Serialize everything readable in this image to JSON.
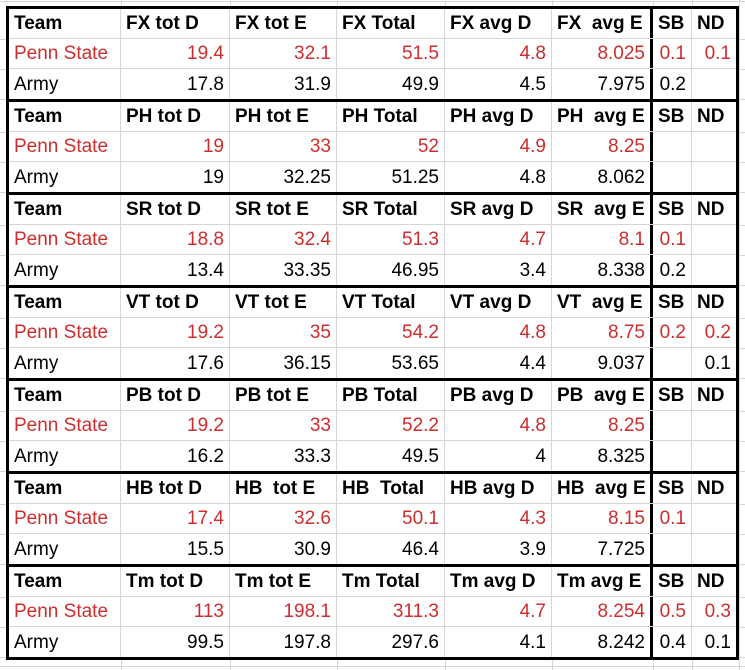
{
  "table": {
    "colors": {
      "penn_state_text": "#cc2e2e",
      "army_text": "#000000",
      "gridline": "#d6d6d6",
      "border": "#000000",
      "background": "#ffffff"
    },
    "sections": [
      {
        "event": "FX",
        "headers": [
          "Team",
          "FX tot D",
          "FX tot E",
          "FX Total",
          "FX avg D",
          "FX  avg E",
          "SB",
          "ND"
        ],
        "rows": [
          {
            "team": "Penn State",
            "color": "red",
            "values": [
              "19.4",
              "32.1",
              "51.5",
              "4.8",
              "8.025",
              "0.1",
              "0.1"
            ]
          },
          {
            "team": "Army",
            "color": "black",
            "values": [
              "17.8",
              "31.9",
              "49.9",
              "4.5",
              "7.975",
              "0.2",
              ""
            ]
          }
        ]
      },
      {
        "event": "PH",
        "headers": [
          "Team",
          "PH tot D",
          "PH tot E",
          "PH Total",
          "PH avg D",
          "PH  avg E",
          "SB",
          "ND"
        ],
        "rows": [
          {
            "team": "Penn State",
            "color": "red",
            "values": [
              "19",
              "33",
              "52",
              "4.9",
              "8.25",
              "",
              ""
            ]
          },
          {
            "team": "Army",
            "color": "black",
            "values": [
              "19",
              "32.25",
              "51.25",
              "4.8",
              "8.062",
              "",
              ""
            ]
          }
        ]
      },
      {
        "event": "SR",
        "headers": [
          "Team",
          "SR tot D",
          "SR tot E",
          "SR Total",
          "SR avg D",
          "SR  avg E",
          "SB",
          "ND"
        ],
        "rows": [
          {
            "team": "Penn State",
            "color": "red",
            "values": [
              "18.8",
              "32.4",
              "51.3",
              "4.7",
              "8.1",
              "0.1",
              ""
            ]
          },
          {
            "team": "Army",
            "color": "black",
            "values": [
              "13.4",
              "33.35",
              "46.95",
              "3.4",
              "8.338",
              "0.2",
              ""
            ]
          }
        ]
      },
      {
        "event": "VT",
        "headers": [
          "Team",
          "VT tot D",
          "VT tot E",
          "VT Total",
          "VT avg D",
          "VT  avg E",
          "SB",
          "ND"
        ],
        "rows": [
          {
            "team": "Penn State",
            "color": "red",
            "values": [
              "19.2",
              "35",
              "54.2",
              "4.8",
              "8.75",
              "0.2",
              "0.2"
            ]
          },
          {
            "team": "Army",
            "color": "black",
            "values": [
              "17.6",
              "36.15",
              "53.65",
              "4.4",
              "9.037",
              "",
              "0.1"
            ]
          }
        ]
      },
      {
        "event": "PB",
        "headers": [
          "Team",
          "PB tot D",
          "PB tot E",
          "PB Total",
          "PB avg D",
          "PB  avg E",
          "SB",
          "ND"
        ],
        "rows": [
          {
            "team": "Penn State",
            "color": "red",
            "values": [
              "19.2",
              "33",
              "52.2",
              "4.8",
              "8.25",
              "",
              ""
            ]
          },
          {
            "team": "Army",
            "color": "black",
            "values": [
              "16.2",
              "33.3",
              "49.5",
              "4",
              "8.325",
              "",
              ""
            ]
          }
        ]
      },
      {
        "event": "HB",
        "headers": [
          "Team",
          "HB tot D",
          "HB  tot E",
          "HB  Total",
          "HB avg D",
          "HB  avg E",
          "SB",
          "ND"
        ],
        "rows": [
          {
            "team": "Penn State",
            "color": "red",
            "values": [
              "17.4",
              "32.6",
              "50.1",
              "4.3",
              "8.15",
              "0.1",
              ""
            ]
          },
          {
            "team": "Army",
            "color": "black",
            "values": [
              "15.5",
              "30.9",
              "46.4",
              "3.9",
              "7.725",
              "",
              ""
            ]
          }
        ]
      },
      {
        "event": "Tm",
        "headers": [
          "Team",
          "Tm tot D",
          "Tm tot E",
          "Tm Total",
          "Tm avg D",
          "Tm avg E",
          "SB",
          "ND"
        ],
        "rows": [
          {
            "team": "Penn State",
            "color": "red",
            "values": [
              "113",
              "198.1",
              "311.3",
              "4.7",
              "8.254",
              "0.5",
              "0.3"
            ]
          },
          {
            "team": "Army",
            "color": "black",
            "values": [
              "99.5",
              "197.8",
              "297.6",
              "4.1",
              "8.242",
              "0.4",
              "0.1"
            ]
          }
        ]
      }
    ]
  }
}
